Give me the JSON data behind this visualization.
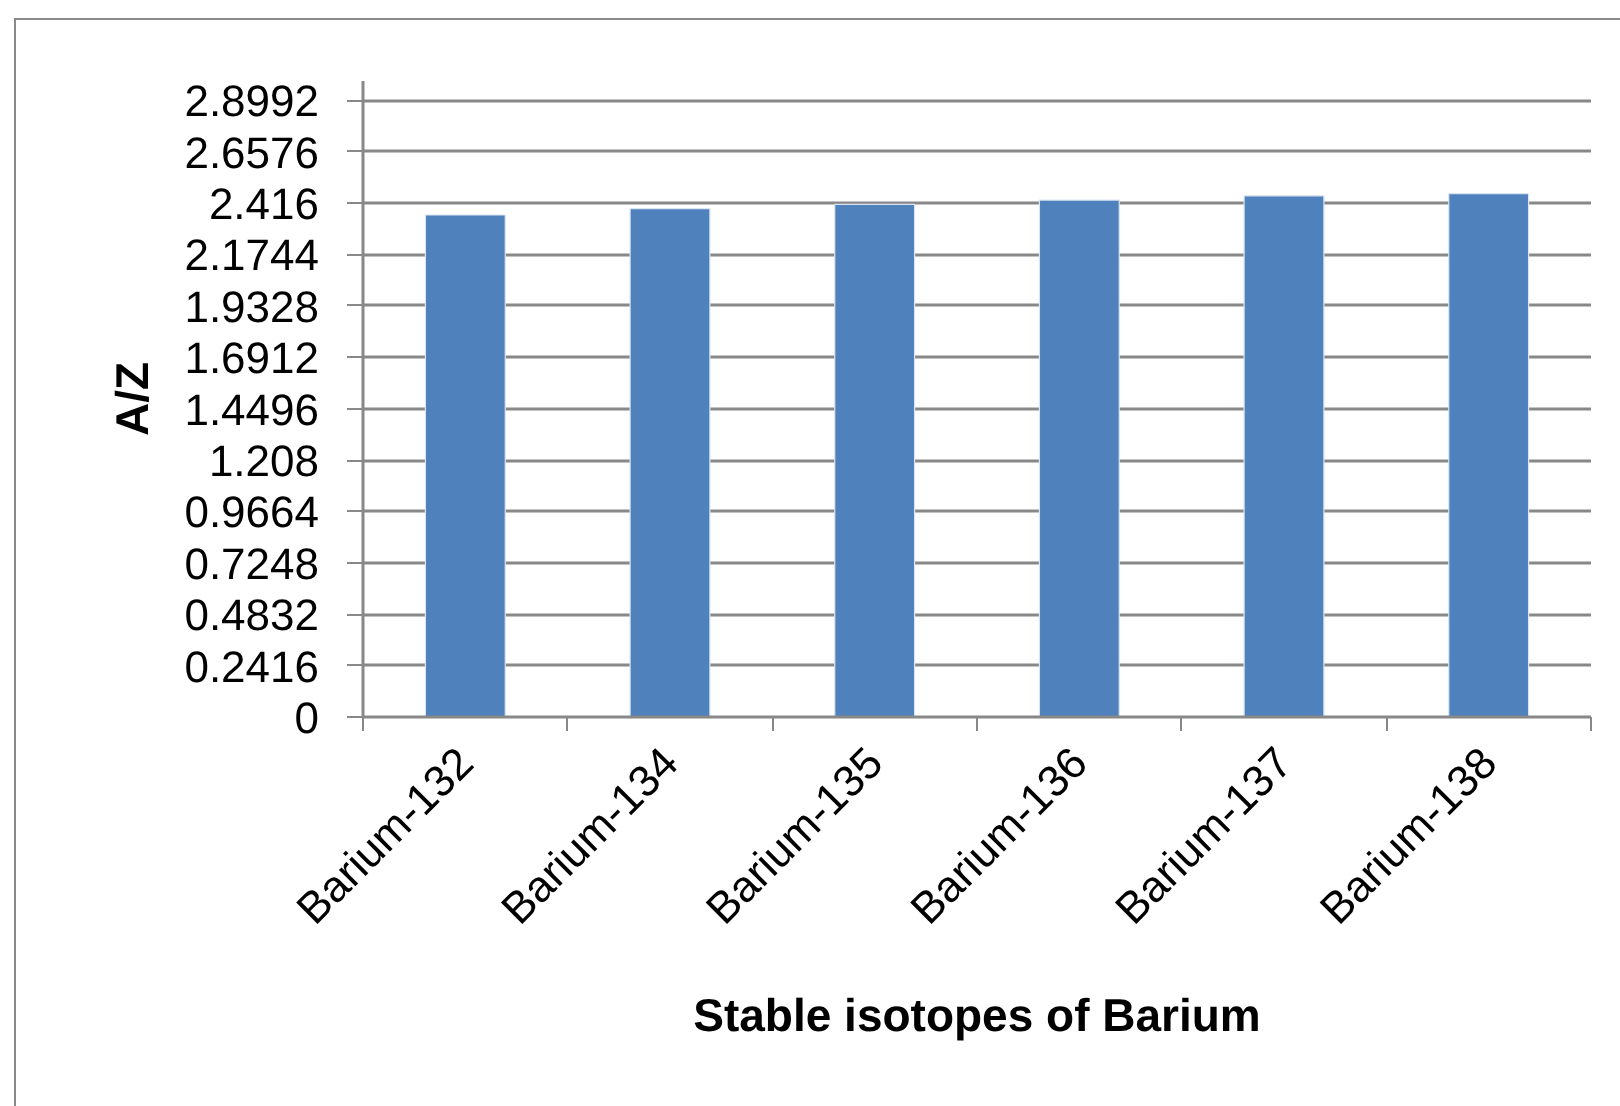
{
  "chart_data": {
    "type": "bar",
    "categories": [
      "Barium-132",
      "Barium-134",
      "Barium-135",
      "Barium-136",
      "Barium-137",
      "Barium-138"
    ],
    "values": [
      2.36,
      2.39,
      2.41,
      2.43,
      2.45,
      2.46
    ],
    "color": "#4f81bd",
    "xlabel": "Stable isotopes of Barium",
    "ylabel": "A/Z",
    "ylim": [
      0,
      2.99
    ],
    "yticks": [
      0,
      0.2416,
      0.4832,
      0.7248,
      0.9664,
      1.208,
      1.4496,
      1.6912,
      1.9328,
      2.1744,
      2.416,
      2.6576,
      2.8992
    ],
    "grid": "y"
  }
}
